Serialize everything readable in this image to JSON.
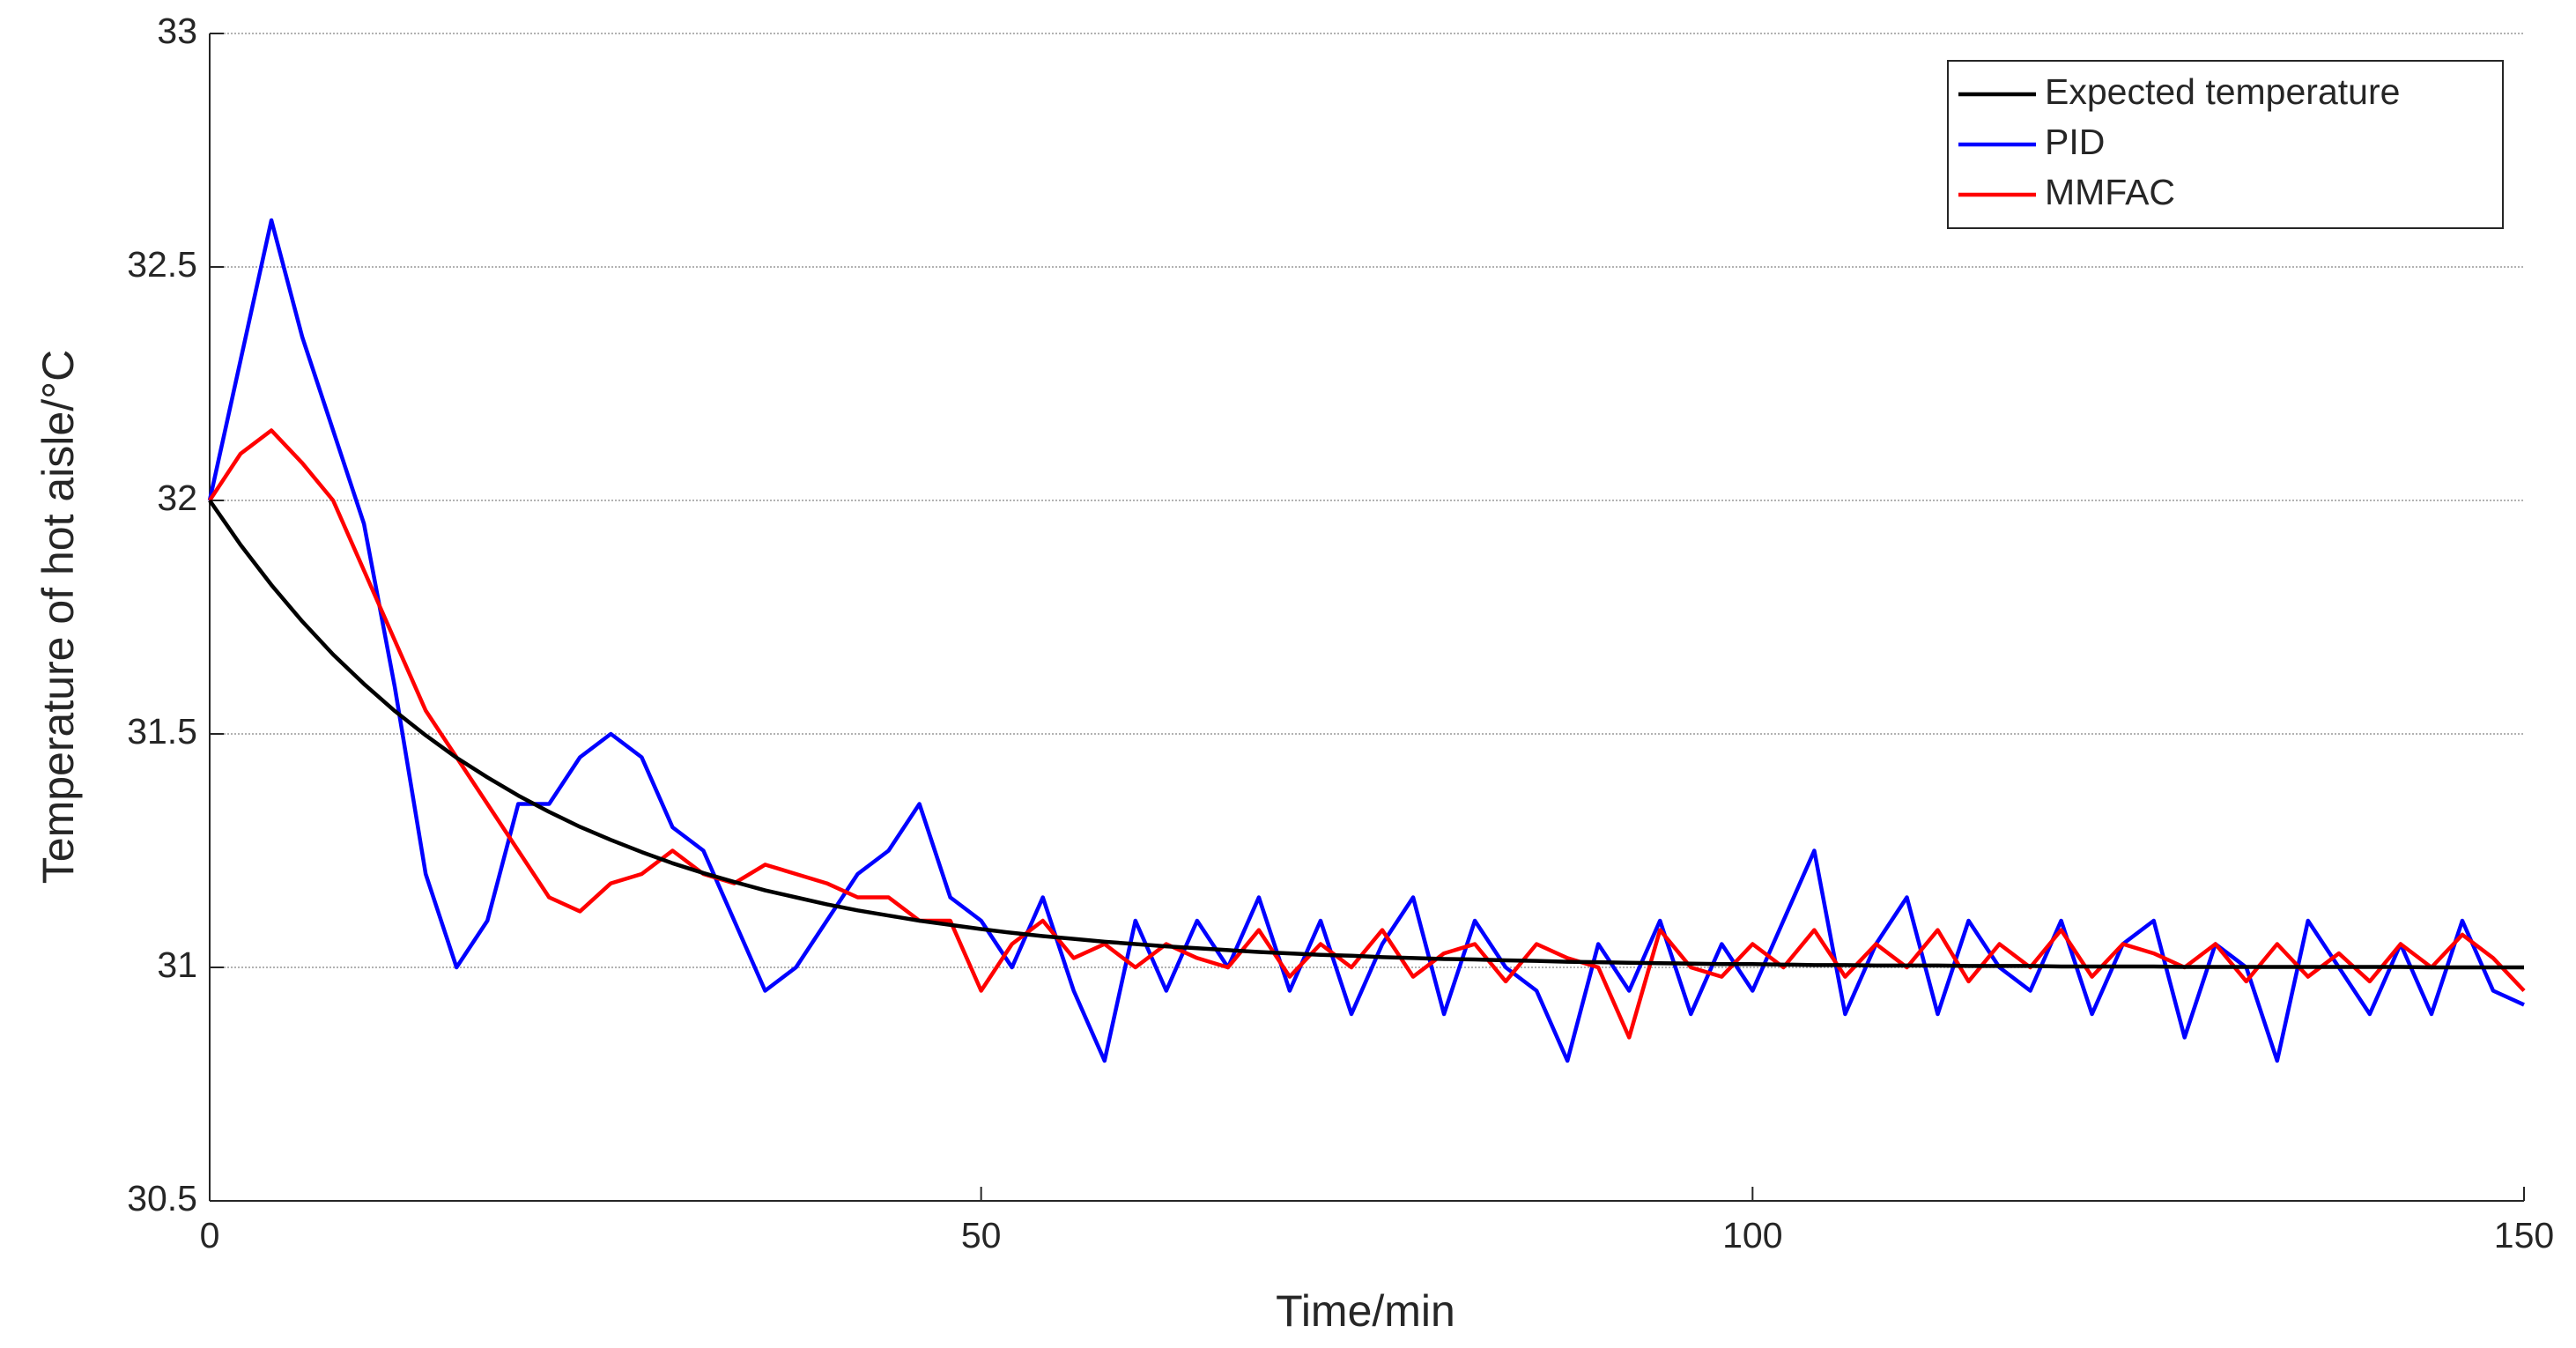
{
  "chart_data": {
    "type": "line",
    "xlabel": "Time/min",
    "ylabel": "Temperature of hot aisle/°C",
    "x": [
      0,
      2,
      4,
      6,
      8,
      10,
      12,
      14,
      16,
      18,
      20,
      22,
      24,
      26,
      28,
      30,
      32,
      34,
      36,
      38,
      40,
      42,
      44,
      46,
      48,
      50,
      52,
      54,
      56,
      58,
      60,
      62,
      64,
      66,
      68,
      70,
      72,
      74,
      76,
      78,
      80,
      82,
      84,
      86,
      88,
      90,
      92,
      94,
      96,
      98,
      100,
      102,
      104,
      106,
      108,
      110,
      112,
      114,
      116,
      118,
      120,
      122,
      124,
      126,
      128,
      130,
      132,
      134,
      136,
      138,
      140,
      142,
      144,
      146,
      148,
      150
    ],
    "series": [
      {
        "name": "Expected temperature",
        "color": "#000000",
        "values": [
          32,
          31.905,
          31.819,
          31.741,
          31.67,
          31.607,
          31.549,
          31.497,
          31.449,
          31.407,
          31.368,
          31.333,
          31.301,
          31.273,
          31.247,
          31.223,
          31.202,
          31.183,
          31.165,
          31.15,
          31.135,
          31.122,
          31.111,
          31.1,
          31.091,
          31.082,
          31.074,
          31.067,
          31.061,
          31.055,
          31.05,
          31.045,
          31.041,
          31.037,
          31.033,
          31.03,
          31.027,
          31.025,
          31.022,
          31.02,
          31.018,
          31.017,
          31.015,
          31.014,
          31.012,
          31.011,
          31.01,
          31.009,
          31.008,
          31.007,
          31.007,
          31.006,
          31.005,
          31.005,
          31.004,
          31.004,
          31.004,
          31.003,
          31.003,
          31.003,
          31.002,
          31.002,
          31.002,
          31.002,
          31.001,
          31.001,
          31.001,
          31.001,
          31.001,
          31.001,
          31.001,
          31.001,
          31,
          31,
          31,
          31
        ]
      },
      {
        "name": "PID",
        "color": "#0000ff",
        "values": [
          32.0,
          32.3,
          32.6,
          32.35,
          32.15,
          31.95,
          31.6,
          31.2,
          31.0,
          31.1,
          31.35,
          31.35,
          31.45,
          31.5,
          31.45,
          31.3,
          31.25,
          31.1,
          30.95,
          31.0,
          31.1,
          31.2,
          31.25,
          31.35,
          31.15,
          31.1,
          31.0,
          31.15,
          30.95,
          30.8,
          31.1,
          30.95,
          31.1,
          31.0,
          31.15,
          30.95,
          31.1,
          30.9,
          31.05,
          31.15,
          30.9,
          31.1,
          31.0,
          30.95,
          30.8,
          31.05,
          30.95,
          31.1,
          30.9,
          31.05,
          30.95,
          31.1,
          31.25,
          30.9,
          31.05,
          31.15,
          30.9,
          31.1,
          31.0,
          30.95,
          31.1,
          30.9,
          31.05,
          31.1,
          30.85,
          31.05,
          31.0,
          30.8,
          31.1,
          31.0,
          30.9,
          31.05,
          30.9,
          31.1,
          30.95,
          30.92
        ]
      },
      {
        "name": "MMFAC",
        "color": "#ff0000",
        "values": [
          32.0,
          32.1,
          32.15,
          32.08,
          32.0,
          31.85,
          31.7,
          31.55,
          31.45,
          31.35,
          31.25,
          31.15,
          31.12,
          31.18,
          31.2,
          31.25,
          31.2,
          31.18,
          31.22,
          31.2,
          31.18,
          31.15,
          31.15,
          31.1,
          31.1,
          30.95,
          31.05,
          31.1,
          31.02,
          31.05,
          31.0,
          31.05,
          31.02,
          31.0,
          31.08,
          30.98,
          31.05,
          31.0,
          31.08,
          30.98,
          31.03,
          31.05,
          30.97,
          31.05,
          31.02,
          31.0,
          30.85,
          31.08,
          31.0,
          30.98,
          31.05,
          31.0,
          31.08,
          30.98,
          31.05,
          31.0,
          31.08,
          30.97,
          31.05,
          31.0,
          31.08,
          30.98,
          31.05,
          31.03,
          31.0,
          31.05,
          30.97,
          31.05,
          30.98,
          31.03,
          30.97,
          31.05,
          31.0,
          31.07,
          31.02,
          30.95
        ]
      }
    ],
    "xlim": [
      0,
      150
    ],
    "xticks": [
      0,
      50,
      100,
      150
    ],
    "ylim": [
      30.5,
      33
    ],
    "yticks": [
      30.5,
      31,
      31.5,
      32,
      32.5,
      33
    ],
    "grid": true,
    "legend": "northeast"
  }
}
